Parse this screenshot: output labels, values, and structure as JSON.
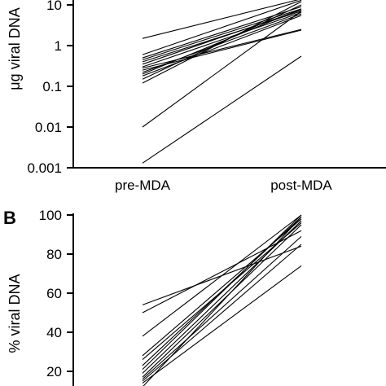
{
  "chart_data": [
    {
      "type": "line",
      "panel_label": "",
      "ylabel": "μg viral DNA",
      "xlabel": "",
      "categories": [
        "pre-MDA",
        "post-MDA"
      ],
      "yscale": "log",
      "ylim": [
        0.001,
        10
      ],
      "yticks": [
        0.001,
        0.01,
        0.1,
        1,
        10
      ],
      "ytick_labels": [
        "0.001",
        "0.01",
        "0.1",
        "1",
        "10"
      ],
      "grid": false,
      "series": [
        {
          "values": [
            1.5,
            14
          ]
        },
        {
          "values": [
            0.6,
            13
          ]
        },
        {
          "values": [
            0.5,
            9
          ]
        },
        {
          "values": [
            0.45,
            8
          ]
        },
        {
          "values": [
            0.4,
            7
          ]
        },
        {
          "values": [
            0.35,
            7.5
          ]
        },
        {
          "values": [
            0.3,
            6.5
          ]
        },
        {
          "values": [
            0.28,
            2.5
          ]
        },
        {
          "values": [
            0.25,
            2.4
          ]
        },
        {
          "values": [
            0.22,
            6
          ]
        },
        {
          "values": [
            0.2,
            8
          ]
        },
        {
          "values": [
            0.18,
            5.5
          ]
        },
        {
          "values": [
            0.15,
            10
          ]
        },
        {
          "values": [
            0.12,
            12
          ]
        },
        {
          "values": [
            0.01,
            7
          ]
        },
        {
          "values": [
            0.0013,
            0.55
          ]
        }
      ]
    },
    {
      "type": "line",
      "panel_label": "B",
      "ylabel": "% viral DNA",
      "xlabel": "",
      "categories": [
        "pre-MDA",
        "post-MDA"
      ],
      "yscale": "linear",
      "ylim": [
        15,
        100
      ],
      "yticks": [
        20,
        40,
        60,
        80,
        100
      ],
      "ytick_labels": [
        "20",
        "40",
        "60",
        "80",
        "100"
      ],
      "grid": false,
      "series": [
        {
          "values": [
            54,
            84
          ]
        },
        {
          "values": [
            50,
            92
          ]
        },
        {
          "values": [
            38,
            100
          ]
        },
        {
          "values": [
            28,
            98
          ]
        },
        {
          "values": [
            26,
            96
          ]
        },
        {
          "values": [
            23,
            99
          ]
        },
        {
          "values": [
            21,
            100
          ]
        },
        {
          "values": [
            19,
            97
          ]
        },
        {
          "values": [
            17,
            95
          ]
        },
        {
          "values": [
            16,
            89
          ]
        },
        {
          "values": [
            15,
            85
          ]
        },
        {
          "values": [
            14,
            74
          ]
        },
        {
          "values": [
            12,
            99
          ]
        }
      ]
    }
  ]
}
